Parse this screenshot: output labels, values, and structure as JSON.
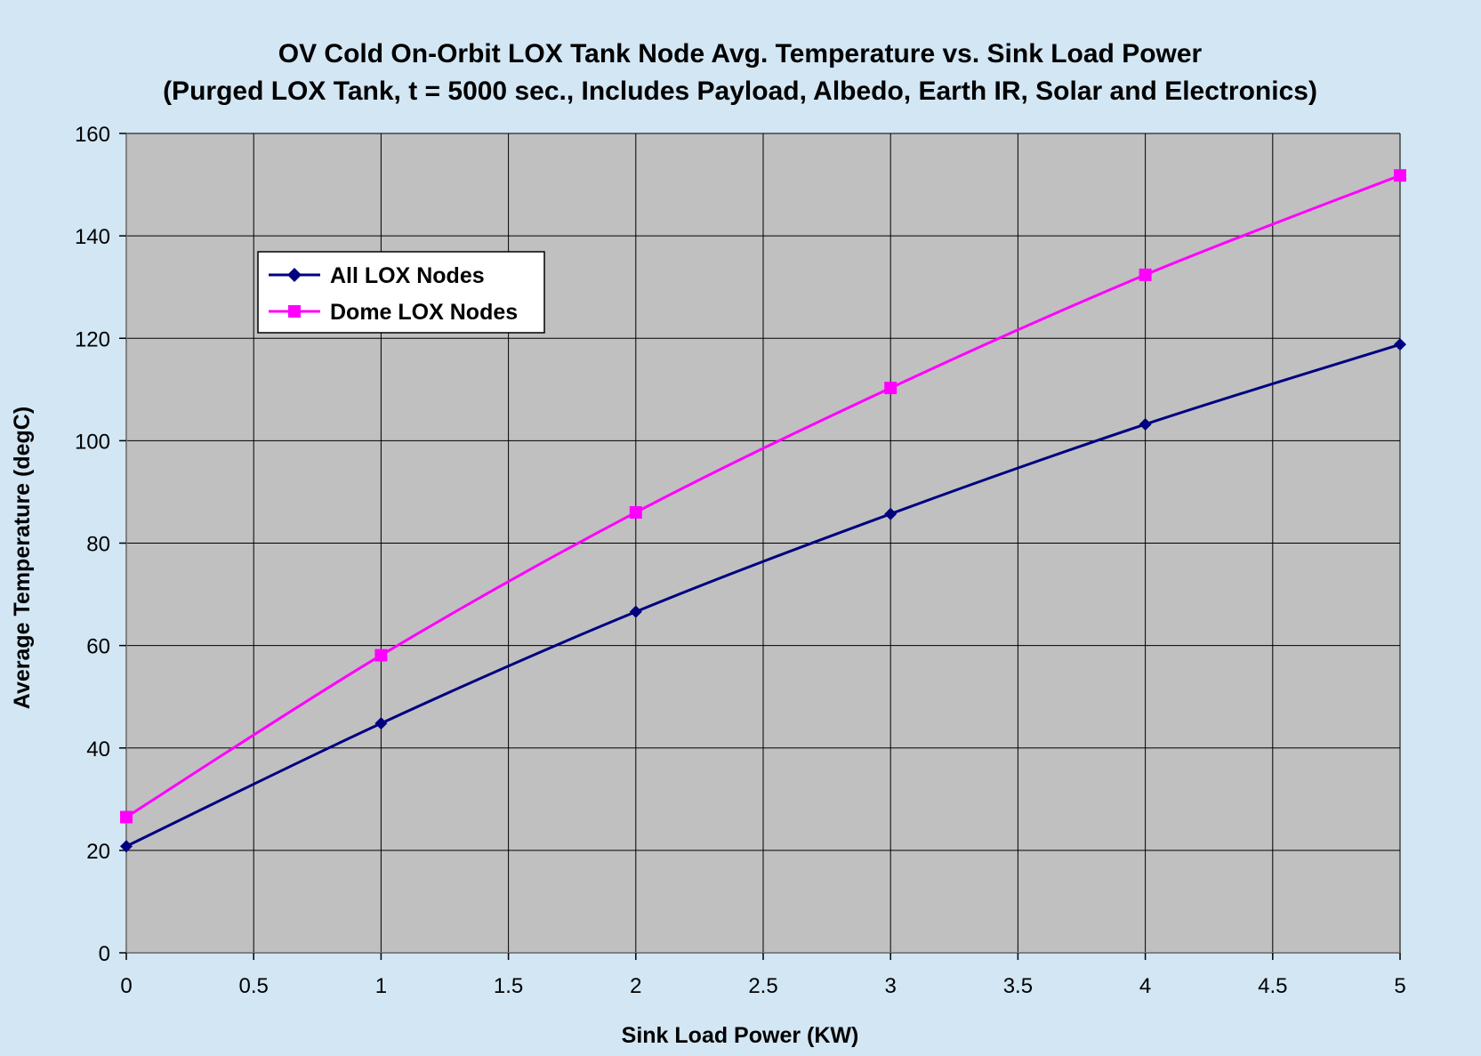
{
  "chart_data": {
    "type": "line",
    "title": "OV Cold On-Orbit LOX Tank Node Avg. Temperature vs. Sink Load Power",
    "subtitle": "(Purged LOX Tank, t = 5000 sec., Includes Payload, Albedo, Earth IR, Solar and Electronics)",
    "xlabel": "Sink Load Power (KW)",
    "ylabel": "Average Temperature (degC)",
    "xlim": [
      0,
      5
    ],
    "ylim": [
      0,
      160
    ],
    "x_ticks": [
      "0",
      "0.5",
      "1",
      "1.5",
      "2",
      "2.5",
      "3",
      "3.5",
      "4",
      "4.5",
      "5"
    ],
    "y_ticks": [
      "0",
      "20",
      "40",
      "60",
      "80",
      "100",
      "120",
      "140",
      "160"
    ],
    "grid": true,
    "legend_position": "upper-left",
    "plot_background": "#c0c0c0",
    "page_background": "#d2e6f4",
    "series": [
      {
        "name": "All LOX Nodes",
        "color": "#000080",
        "marker": "diamond",
        "x": [
          0,
          1,
          2,
          3,
          4,
          5
        ],
        "values": [
          20.8,
          44.8,
          66.6,
          85.7,
          103.2,
          118.8
        ]
      },
      {
        "name": "Dome LOX Nodes",
        "color": "#ff00ff",
        "marker": "square",
        "x": [
          0,
          1,
          2,
          3,
          4,
          5
        ],
        "values": [
          26.5,
          58.1,
          86.0,
          110.3,
          132.4,
          151.8
        ]
      }
    ]
  }
}
